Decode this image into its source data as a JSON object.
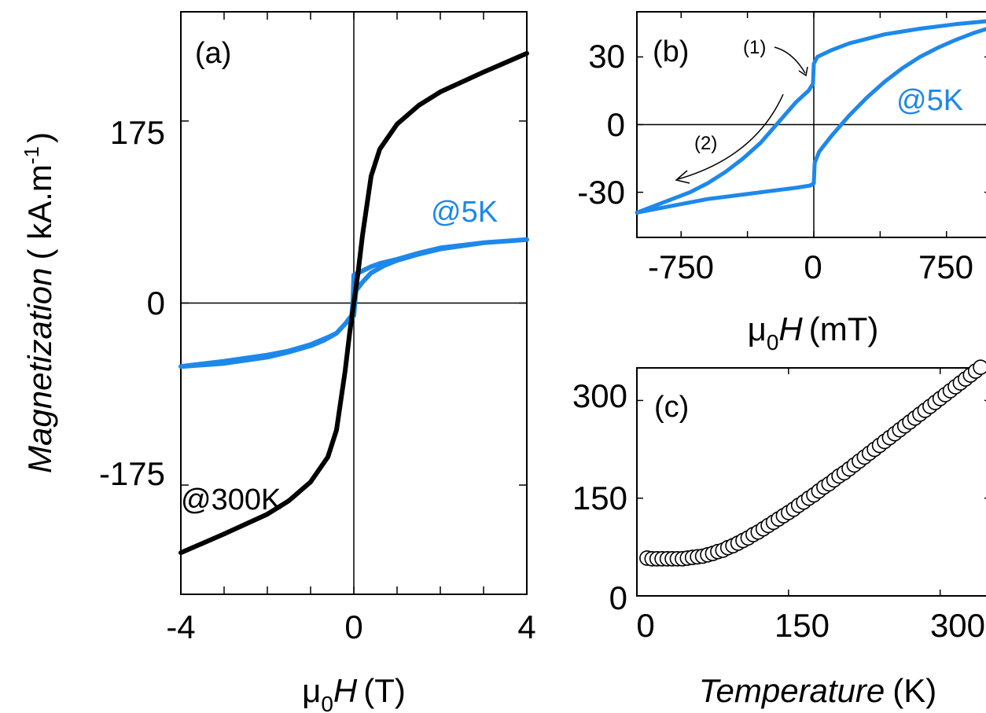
{
  "colors": {
    "blue": "#1e88ea",
    "black": "#000000"
  },
  "chart_data": [
    {
      "panel_label": "(a)",
      "type": "line",
      "xlim": [
        -4,
        4
      ],
      "ylim": [
        -280,
        280
      ],
      "x_ticks": [
        "-4",
        "0",
        "4"
      ],
      "y_ticks": [
        "175",
        "0",
        "-175"
      ],
      "xlabel_sym": "μ",
      "xlabel_sub": "0",
      "xlabel_var": "H",
      "xlabel_unit": "(T)",
      "ylabel_word": "Magnetization",
      "ylabel_unit": "( kA.m",
      "ylabel_exp": "-1",
      "ylabel_close": ")",
      "series": [
        {
          "name": "@300K",
          "color": "#000000",
          "x": [
            -4,
            -3,
            -2,
            -1.5,
            -1,
            -0.6,
            -0.4,
            -0.2,
            -0.1,
            0,
            0.1,
            0.2,
            0.4,
            0.6,
            1,
            1.5,
            2,
            3,
            4
          ],
          "y": [
            -240,
            -222,
            -203,
            -190,
            -172,
            -148,
            -122,
            -65,
            -30,
            0,
            30,
            65,
            122,
            148,
            172,
            190,
            203,
            222,
            240
          ]
        },
        {
          "name": "@5K",
          "color": "#1e88ea",
          "x": [
            -4,
            -3,
            -2,
            -1.5,
            -1,
            -0.6,
            -0.4,
            -0.2,
            0,
            0.02,
            0.05,
            0.2,
            0.4,
            0.7,
            1,
            1.5,
            2,
            3,
            4,
            3,
            2,
            1.5,
            1,
            0.6,
            0.4,
            0.2,
            0,
            -0.02,
            -0.05,
            -0.2,
            -0.4,
            -0.7,
            -1,
            -1.5,
            -2,
            -3,
            -4
          ],
          "y": [
            -61,
            -56,
            -50,
            -46,
            -40,
            -33,
            -29,
            -20,
            -12,
            -2,
            12,
            20,
            29,
            36,
            41,
            47,
            52,
            58,
            61,
            58,
            53,
            48,
            42,
            38,
            35,
            31,
            27,
            2,
            -12,
            -20,
            -29,
            -36,
            -41,
            -47,
            -52,
            -58,
            -61
          ]
        }
      ]
    },
    {
      "panel_label": "(b)",
      "type": "line",
      "xlim": [
        -1000,
        1000
      ],
      "ylim": [
        -50,
        50
      ],
      "x_ticks": [
        "-750",
        "0",
        "750"
      ],
      "y_ticks": [
        "30",
        "0",
        "-30"
      ],
      "xlabel_sym": "μ",
      "xlabel_sub": "0",
      "xlabel_var": "H",
      "xlabel_unit": "(mT)",
      "annotations": [
        "(1)",
        "(2)"
      ],
      "series": [
        {
          "name": "@5K",
          "color": "#1e88ea",
          "x": [
            1000,
            800,
            600,
            400,
            200,
            100,
            20,
            0,
            -5,
            -30,
            -100,
            -200,
            -300,
            -400,
            -500,
            -600,
            -700,
            -800,
            -900,
            -1000,
            -800,
            -600,
            -400,
            -200,
            -100,
            -20,
            0,
            5,
            30,
            100,
            200,
            300,
            400,
            500,
            600,
            700,
            800,
            900,
            1000
          ],
          "y": [
            46,
            44.5,
            42.5,
            40,
            36,
            33,
            30,
            27,
            18,
            15,
            10,
            1,
            -8,
            -15,
            -21,
            -26,
            -30,
            -33,
            -36,
            -39,
            -36,
            -33,
            -31,
            -29,
            -28,
            -27,
            -26,
            -17,
            -12,
            -5,
            4,
            12,
            19,
            25,
            30,
            34,
            37.5,
            40.5,
            43
          ]
        }
      ]
    },
    {
      "panel_label": "(c)",
      "type": "scatter",
      "xlim": [
        0,
        350
      ],
      "ylim": [
        0,
        350
      ],
      "x_ticks": [
        "0",
        "150",
        "300"
      ],
      "y_ticks": [
        "300",
        "150",
        "0"
      ],
      "xlabel_word": "Temperature",
      "xlabel_unit": "(K)",
      "series": [
        {
          "marker": "open-circle",
          "x": [
            10,
            15,
            20,
            25,
            30,
            35,
            40,
            45,
            50,
            55,
            60,
            65,
            70,
            75,
            80,
            85,
            90,
            95,
            100,
            105,
            110,
            115,
            120,
            125,
            130,
            135,
            140,
            145,
            150,
            155,
            160,
            165,
            170,
            175,
            180,
            185,
            190,
            195,
            200,
            205,
            210,
            215,
            220,
            225,
            230,
            235,
            240,
            245,
            250,
            255,
            260,
            265,
            270,
            275,
            280,
            285,
            290,
            295,
            300,
            305,
            310,
            315,
            320,
            325,
            330,
            335,
            340,
            345,
            350
          ],
          "y": [
            58,
            57,
            57,
            57,
            57,
            57,
            57,
            57,
            58,
            59,
            60,
            61,
            63,
            65,
            68,
            70,
            74,
            77,
            81,
            85,
            89,
            94,
            98,
            103,
            108,
            113,
            118,
            123,
            128,
            133,
            139,
            144,
            150,
            155,
            161,
            167,
            172,
            178,
            184,
            189,
            195,
            201,
            207,
            213,
            219,
            225,
            231,
            237,
            243,
            249,
            255,
            261,
            267,
            273,
            279,
            285,
            291,
            297,
            303,
            309,
            315,
            321,
            327,
            333,
            339,
            345,
            351,
            357,
            363
          ]
        }
      ]
    }
  ]
}
